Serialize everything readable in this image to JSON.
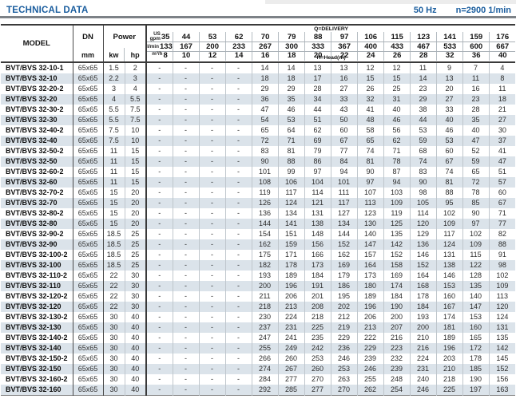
{
  "header": {
    "title": "TECHNICAL DATA",
    "frequency": "50 Hz",
    "speed": "n=2900 1/min"
  },
  "table": {
    "model_label": "MODEL",
    "dn_label": "DN",
    "dn_unit": "mm",
    "power_label": "Power",
    "kw_label": "kw",
    "hp_label": "hp",
    "delivery_label": "Q=DELIVERY",
    "head_label": "H=Head(m)",
    "units": {
      "us_gpm_line1": "US",
      "us_gpm_line2": "gpm",
      "l_min": "l/min",
      "m3_h": "m³/h"
    },
    "gpm": [
      35,
      44,
      53,
      62,
      70,
      79,
      88,
      97,
      106,
      115,
      123,
      141,
      159,
      176
    ],
    "lmin": [
      133,
      167,
      200,
      233,
      267,
      300,
      333,
      367,
      400,
      433,
      467,
      533,
      600,
      667
    ],
    "m3h": [
      8,
      10,
      12,
      14,
      16,
      18,
      20,
      22,
      24,
      26,
      28,
      32,
      36,
      40
    ],
    "rows": [
      {
        "model": "BVT/BVS 32-10-1",
        "dn": "65x65",
        "kw": "1.5",
        "hp": "2",
        "heads": [
          "-",
          "-",
          "-",
          "-",
          14,
          14,
          13,
          13,
          12,
          12,
          11,
          9,
          7,
          4
        ]
      },
      {
        "model": "BVT/BVS 32-10",
        "dn": "65x65",
        "kw": "2.2",
        "hp": "3",
        "heads": [
          "-",
          "-",
          "-",
          "-",
          18,
          18,
          17,
          16,
          15,
          15,
          14,
          13,
          11,
          8
        ]
      },
      {
        "model": "BVT/BVS 32-20-2",
        "dn": "65x65",
        "kw": "3",
        "hp": "4",
        "heads": [
          "-",
          "-",
          "-",
          "-",
          29,
          29,
          28,
          27,
          26,
          25,
          23,
          20,
          16,
          11
        ]
      },
      {
        "model": "BVT/BVS 32-20",
        "dn": "65x65",
        "kw": "4",
        "hp": "5.5",
        "heads": [
          "-",
          "-",
          "-",
          "-",
          36,
          35,
          34,
          33,
          32,
          31,
          29,
          27,
          23,
          18
        ]
      },
      {
        "model": "BVT/BVS 32-30-2",
        "dn": "65x65",
        "kw": "5.5",
        "hp": "7.5",
        "heads": [
          "-",
          "-",
          "-",
          "-",
          47,
          46,
          44,
          43,
          41,
          40,
          38,
          33,
          28,
          21
        ]
      },
      {
        "model": "BVT/BVS 32-30",
        "dn": "65x65",
        "kw": "5.5",
        "hp": "7.5",
        "heads": [
          "-",
          "-",
          "-",
          "-",
          54,
          53,
          51,
          50,
          48,
          46,
          44,
          40,
          35,
          27
        ]
      },
      {
        "model": "BVT/BVS 32-40-2",
        "dn": "65x65",
        "kw": "7.5",
        "hp": "10",
        "heads": [
          "-",
          "-",
          "-",
          "-",
          65,
          64,
          62,
          60,
          58,
          56,
          53,
          46,
          40,
          30
        ]
      },
      {
        "model": "BVT/BVS 32-40",
        "dn": "65x65",
        "kw": "7.5",
        "hp": "10",
        "heads": [
          "-",
          "-",
          "-",
          "-",
          72,
          71,
          69,
          67,
          65,
          62,
          59,
          53,
          47,
          37
        ]
      },
      {
        "model": "BVT/BVS 32-50-2",
        "dn": "65x65",
        "kw": "11",
        "hp": "15",
        "heads": [
          "-",
          "-",
          "-",
          "-",
          83,
          81,
          79,
          77,
          74,
          71,
          68,
          60,
          52,
          41
        ]
      },
      {
        "model": "BVT/BVS 32-50",
        "dn": "65x65",
        "kw": "11",
        "hp": "15",
        "heads": [
          "-",
          "-",
          "-",
          "-",
          90,
          88,
          86,
          84,
          81,
          78,
          74,
          67,
          59,
          47
        ]
      },
      {
        "model": "BVT/BVS 32-60-2",
        "dn": "65x65",
        "kw": "11",
        "hp": "15",
        "heads": [
          "-",
          "-",
          "-",
          "-",
          101,
          99,
          97,
          94,
          90,
          87,
          83,
          74,
          65,
          51
        ]
      },
      {
        "model": "BVT/BVS 32-60",
        "dn": "65x65",
        "kw": "11",
        "hp": "15",
        "heads": [
          "-",
          "-",
          "-",
          "-",
          108,
          106,
          104,
          101,
          97,
          94,
          90,
          81,
          72,
          57
        ]
      },
      {
        "model": "BVT/BVS 32-70-2",
        "dn": "65x65",
        "kw": "15",
        "hp": "20",
        "heads": [
          "-",
          "-",
          "-",
          "-",
          119,
          117,
          114,
          111,
          107,
          103,
          98,
          88,
          78,
          60
        ]
      },
      {
        "model": "BVT/BVS 32-70",
        "dn": "65x65",
        "kw": "15",
        "hp": "20",
        "heads": [
          "-",
          "-",
          "-",
          "-",
          126,
          124,
          121,
          117,
          113,
          109,
          105,
          95,
          85,
          67
        ]
      },
      {
        "model": "BVT/BVS 32-80-2",
        "dn": "65x65",
        "kw": "15",
        "hp": "20",
        "heads": [
          "-",
          "-",
          "-",
          "-",
          136,
          134,
          131,
          127,
          123,
          119,
          114,
          102,
          90,
          71
        ]
      },
      {
        "model": "BVT/BVS 32-80",
        "dn": "65x65",
        "kw": "15",
        "hp": "20",
        "heads": [
          "-",
          "-",
          "-",
          "-",
          144,
          141,
          138,
          134,
          130,
          125,
          120,
          109,
          97,
          77
        ]
      },
      {
        "model": "BVT/BVS 32-90-2",
        "dn": "65x65",
        "kw": "18.5",
        "hp": "25",
        "heads": [
          "-",
          "-",
          "-",
          "-",
          154,
          151,
          148,
          144,
          140,
          135,
          129,
          117,
          102,
          82
        ]
      },
      {
        "model": "BVT/BVS 32-90",
        "dn": "65x65",
        "kw": "18.5",
        "hp": "25",
        "heads": [
          "-",
          "-",
          "-",
          "-",
          162,
          159,
          156,
          152,
          147,
          142,
          136,
          124,
          109,
          88
        ]
      },
      {
        "model": "BVT/BVS 32-100-2",
        "dn": "65x65",
        "kw": "18.5",
        "hp": "25",
        "heads": [
          "-",
          "-",
          "-",
          "-",
          175,
          171,
          166,
          162,
          157,
          152,
          146,
          131,
          115,
          91
        ]
      },
      {
        "model": "BVT/BVS 32-100",
        "dn": "65x65",
        "kw": "18.5",
        "hp": "25",
        "heads": [
          "-",
          "-",
          "-",
          "-",
          182,
          178,
          173,
          169,
          164,
          158,
          152,
          138,
          122,
          98
        ]
      },
      {
        "model": "BVT/BVS 32-110-2",
        "dn": "65x65",
        "kw": "22",
        "hp": "30",
        "heads": [
          "-",
          "-",
          "-",
          "-",
          193,
          189,
          184,
          179,
          173,
          169,
          164,
          146,
          128,
          102
        ]
      },
      {
        "model": "BVT/BVS 32-110",
        "dn": "65x65",
        "kw": "22",
        "hp": "30",
        "heads": [
          "-",
          "-",
          "-",
          "-",
          200,
          196,
          191,
          186,
          180,
          174,
          168,
          153,
          135,
          109
        ]
      },
      {
        "model": "BVT/BVS 32-120-2",
        "dn": "65x65",
        "kw": "22",
        "hp": "30",
        "heads": [
          "-",
          "-",
          "-",
          "-",
          211,
          206,
          201,
          195,
          189,
          184,
          178,
          160,
          140,
          113
        ]
      },
      {
        "model": "BVT/BVS 32-120",
        "dn": "65x65",
        "kw": "22",
        "hp": "30",
        "heads": [
          "-",
          "-",
          "-",
          "-",
          218,
          213,
          208,
          202,
          196,
          190,
          184,
          167,
          147,
          120
        ]
      },
      {
        "model": "BVT/BVS 32-130-2",
        "dn": "65x65",
        "kw": "30",
        "hp": "40",
        "heads": [
          "-",
          "-",
          "-",
          "-",
          230,
          224,
          218,
          212,
          206,
          200,
          193,
          174,
          153,
          124
        ]
      },
      {
        "model": "BVT/BVS 32-130",
        "dn": "65x65",
        "kw": "30",
        "hp": "40",
        "heads": [
          "-",
          "-",
          "-",
          "-",
          237,
          231,
          225,
          219,
          213,
          207,
          200,
          181,
          160,
          131
        ]
      },
      {
        "model": "BVT/BVS 32-140-2",
        "dn": "65x65",
        "kw": "30",
        "hp": "40",
        "heads": [
          "-",
          "-",
          "-",
          "-",
          247,
          241,
          235,
          229,
          222,
          216,
          210,
          189,
          165,
          135
        ]
      },
      {
        "model": "BVT/BVS 32-140",
        "dn": "65x65",
        "kw": "30",
        "hp": "40",
        "heads": [
          "-",
          "-",
          "-",
          "-",
          255,
          249,
          242,
          236,
          229,
          223,
          216,
          196,
          172,
          142
        ]
      },
      {
        "model": "BVT/BVS 32-150-2",
        "dn": "65x65",
        "kw": "30",
        "hp": "40",
        "heads": [
          "-",
          "-",
          "-",
          "-",
          266,
          260,
          253,
          246,
          239,
          232,
          224,
          203,
          178,
          145
        ]
      },
      {
        "model": "BVT/BVS 32-150",
        "dn": "65x65",
        "kw": "30",
        "hp": "40",
        "heads": [
          "-",
          "-",
          "-",
          "-",
          274,
          267,
          260,
          253,
          246,
          239,
          231,
          210,
          185,
          152
        ]
      },
      {
        "model": "BVT/BVS 32-160-2",
        "dn": "65x65",
        "kw": "30",
        "hp": "40",
        "heads": [
          "-",
          "-",
          "-",
          "-",
          284,
          277,
          270,
          263,
          255,
          248,
          240,
          218,
          190,
          156
        ]
      },
      {
        "model": "BVT/BVS 32-160",
        "dn": "65x65",
        "kw": "30",
        "hp": "40",
        "heads": [
          "-",
          "-",
          "-",
          "-",
          292,
          285,
          277,
          270,
          262,
          254,
          246,
          225,
          197,
          163
        ]
      }
    ]
  },
  "colors": {
    "accent_blue": "#1a5d9e",
    "row_stripe": "#dbe3ea"
  }
}
